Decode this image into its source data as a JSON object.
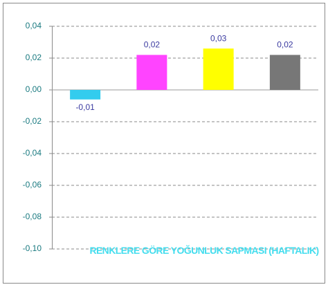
{
  "chart_data": {
    "type": "bar",
    "title": "RENKLERE GÖRE YOĞUNLUK SAPMASI (HAFTALIK)",
    "categories": [
      null,
      null,
      null,
      null
    ],
    "values": [
      -0.006,
      0.022,
      0.026,
      0.022
    ],
    "value_labels": [
      "-0,01",
      "0,02",
      "0,03",
      "0,02"
    ],
    "colors": [
      "#33ccee",
      "#ff44ff",
      "#ffff00",
      "#777777"
    ],
    "ylim": [
      -0.1,
      0.04
    ],
    "yticks": [
      {
        "value": -0.1,
        "label": "-0,10"
      },
      {
        "value": -0.08,
        "label": "-0,08"
      },
      {
        "value": -0.06,
        "label": "-0,06"
      },
      {
        "value": -0.04,
        "label": "-0,04"
      },
      {
        "value": -0.02,
        "label": "-0,02"
      },
      {
        "value": 0,
        "label": "0,00"
      },
      {
        "value": 0.02,
        "label": "0,02"
      },
      {
        "value": 0.04,
        "label": "0,04"
      }
    ],
    "grid": true
  }
}
